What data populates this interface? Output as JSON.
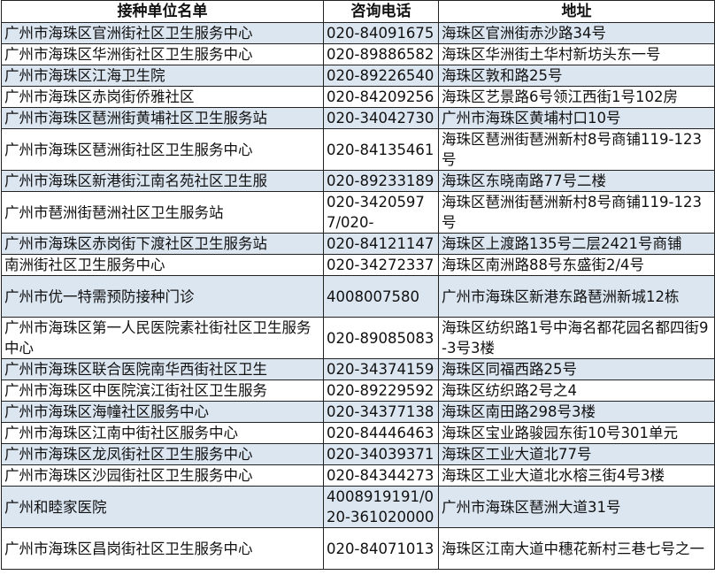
{
  "headers": [
    "接种单位名单",
    "咨询电话",
    "地址"
  ],
  "shade_color": "#dce6f1",
  "rows": [
    {
      "name": "广州市海珠区官洲街社区卫生服务中心",
      "phone": "020-84091675",
      "address": "海珠区官洲街赤沙路34号"
    },
    {
      "name": "广州市海珠区华洲街社区卫生服务中心",
      "phone": "020-89886582",
      "address": "海珠区华洲街土华村新坊头东一号"
    },
    {
      "name": "广州市海珠区江海卫生院",
      "phone": "020-89226540",
      "address": "海珠区敦和路25号"
    },
    {
      "name": "广州市海珠区赤岗街侨雅社区",
      "phone": "020-84209256",
      "address": "海珠区艺景路6号领江西街1号102房"
    },
    {
      "name": "广州市海珠区琶洲街黄埔社区卫生服务站",
      "phone": "020-34042730",
      "address": "广州市海珠区黄埔村口10号"
    },
    {
      "name": "广州市海珠区琶洲街社区卫生服务中心",
      "phone": "020-84135461",
      "address": "海珠区琶洲街琶洲新村8号商铺119-123号"
    },
    {
      "name": "广州市海珠区新港街江南名苑社区卫生服",
      "phone": "020-89233189",
      "address": "海珠区东晓南路77号二楼"
    },
    {
      "name": "广州市琶洲街琶洲社区卫生服务站",
      "phone": "020-34205977/020-",
      "address": "海珠区琶洲街琶洲新村8号商铺119-123号"
    },
    {
      "name": "广州市海珠区赤岗街下渡社区卫生服务站",
      "phone": "020-84121147",
      "address": "海珠区上渡路135号二层2421号商铺"
    },
    {
      "name": "南洲街社区卫生服务中心",
      "phone": "020-34272337",
      "address": "海珠区南洲路88号东盛街2/4号"
    },
    {
      "name": "广州市优一特需预防接种门诊",
      "phone": "4008007580",
      "address": "广州市海珠区新港东路琶洲新城12栋"
    },
    {
      "name": "广州市海珠区第一人民医院素社街社区卫生服务中心",
      "phone": "020-89085083",
      "address": "海珠区纺织路1号中海名都花园名都四街9-3号3楼"
    },
    {
      "name": "广州市海珠区联合医院南华西街社区卫生",
      "phone": "020-34374159",
      "address": "海珠区同福西路25号"
    },
    {
      "name": "广州市海珠区中医院滨江街社区卫生服务",
      "phone": "020-89229592",
      "address": "海珠区纺织路2号之4"
    },
    {
      "name": "广州市海珠区海幢社区服务中心",
      "phone": "020-34377138",
      "address": "海珠区南田路298号3楼"
    },
    {
      "name": "广州市海珠区江南中街社区服务中心",
      "phone": "020-84446463",
      "address": "海珠区宝业路骏园东街10号301单元"
    },
    {
      "name": "广州市海珠区龙凤街社区卫生服务中心",
      "phone": "020-34039371",
      "address": "海珠区工业大道北77号"
    },
    {
      "name": "广州市海珠区沙园街社区卫生服务中心",
      "phone": "020-84344273",
      "address": "海珠区工业大道北水榕三街4号3楼"
    },
    {
      "name": "广州和睦家医院",
      "phone": "4008919191/020-361020000",
      "address": "广州市海珠区琶洲大道31号"
    },
    {
      "name": "广州市海珠区昌岗街社区卫生服务中心",
      "phone": "020-84071013",
      "address": "海珠区江南大道中穗花新村三巷七号之一"
    }
  ]
}
